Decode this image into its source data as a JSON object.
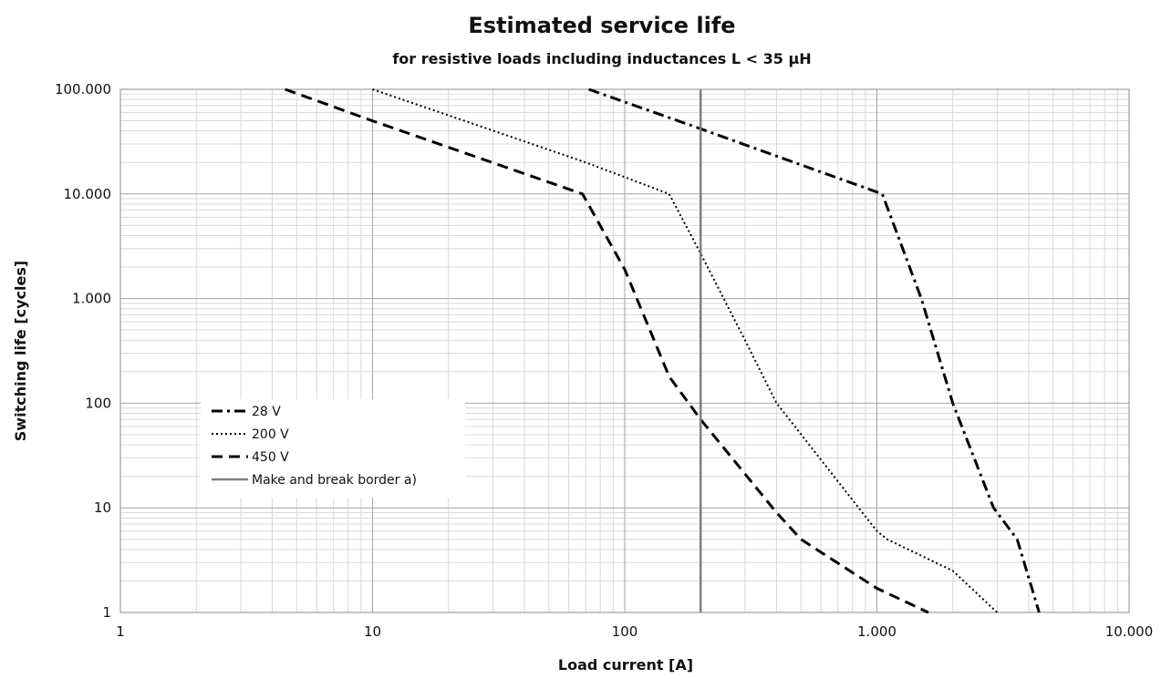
{
  "chart_data": {
    "type": "line",
    "title": "Estimated service life",
    "subtitle": "for resistive loads including inductances L < 35 µH",
    "xlabel": "Load current [A]",
    "ylabel": "Switching life  [cycles]",
    "xscale": "log",
    "yscale": "log",
    "xlim": [
      1,
      10000
    ],
    "ylim": [
      1,
      100000
    ],
    "grid": true,
    "legend_position": "lower-left",
    "x_ticks": [
      {
        "value": 1,
        "label": "1"
      },
      {
        "value": 10,
        "label": "10"
      },
      {
        "value": 100,
        "label": "100"
      },
      {
        "value": 1000,
        "label": "1.000"
      },
      {
        "value": 10000,
        "label": "10.000"
      }
    ],
    "y_ticks": [
      {
        "value": 1,
        "label": "1"
      },
      {
        "value": 10,
        "label": "10"
      },
      {
        "value": 100,
        "label": "100"
      },
      {
        "value": 1000,
        "label": "1.000"
      },
      {
        "value": 10000,
        "label": "10.000"
      },
      {
        "value": 100000,
        "label": "100.000"
      }
    ],
    "series": [
      {
        "name": "28 V",
        "style": "dash-dot",
        "color": "#000000",
        "points": [
          [
            72,
            100000
          ],
          [
            200,
            42000
          ],
          [
            400,
            23000
          ],
          [
            1050,
            10000
          ],
          [
            1500,
            1000
          ],
          [
            2000,
            100
          ],
          [
            2900,
            10
          ],
          [
            3600,
            5
          ],
          [
            4400,
            1
          ]
        ]
      },
      {
        "name": "200 V",
        "style": "dotted",
        "color": "#000000",
        "points": [
          [
            10,
            100000
          ],
          [
            70,
            20000
          ],
          [
            150,
            10000
          ],
          [
            200,
            2700
          ],
          [
            300,
            400
          ],
          [
            400,
            100
          ],
          [
            1000,
            6
          ],
          [
            1100,
            5
          ],
          [
            2000,
            2.5
          ],
          [
            3000,
            1
          ]
        ]
      },
      {
        "name": "450 V",
        "style": "dashed",
        "color": "#000000",
        "points": [
          [
            4.5,
            100000
          ],
          [
            10,
            50000
          ],
          [
            68,
            10000
          ],
          [
            100,
            1900
          ],
          [
            150,
            180
          ],
          [
            200,
            70
          ],
          [
            400,
            9
          ],
          [
            500,
            5
          ],
          [
            1000,
            1.7
          ],
          [
            1600,
            1
          ]
        ]
      },
      {
        "name": "Make and break border a)",
        "style": "solid",
        "color": "#7f7f7f",
        "points": [
          [
            200,
            1
          ],
          [
            200,
            100000
          ]
        ]
      }
    ]
  }
}
